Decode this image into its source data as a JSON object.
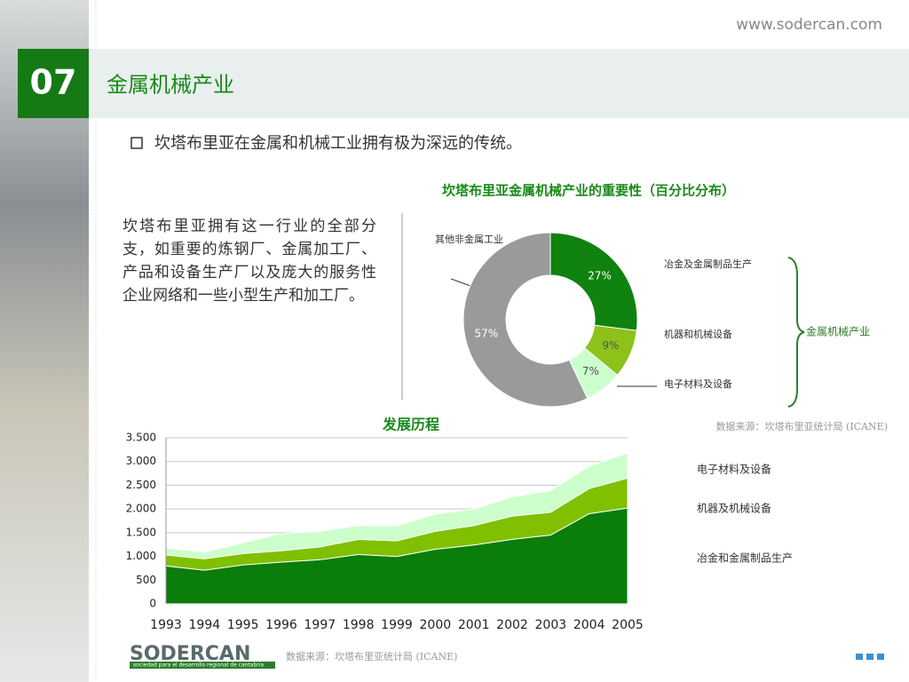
{
  "header": {
    "url": "www.sodercan.com",
    "number": "07",
    "title": "金属机械产业"
  },
  "bullet": "坎塔布里亚在金属和机械工业拥有极为深远的传统。",
  "paragraph": "坎塔布里亚拥有这一行业的全部分支，如重要的炼钢厂、金属加工厂、产品和设备生产厂以及庞大的服务性企业网络和一些小型生产和加工厂。",
  "footer": {
    "logo": "SODERCAN",
    "tagline": "sociedad para el desarrollo regional de cantabria"
  },
  "chart_data": [
    {
      "type": "pie",
      "title": "坎塔布里亚金属机械产业的重要性（百分比分布）",
      "categories": [
        "冶金及金属制品生产",
        "机器和机械设备",
        "电子材料及设备",
        "其他非金属工业"
      ],
      "values": [
        27,
        9,
        7,
        57
      ],
      "value_labels": [
        "27%",
        "9%",
        "7%",
        "57%"
      ],
      "colors": [
        "#0f820f",
        "#8cc21a",
        "#ccffcc",
        "#9a9a9a"
      ],
      "annotation": "金属机械产业",
      "source": "数据来源：坎塔布里亚统计局 (ICANE)"
    },
    {
      "type": "area",
      "title": "发展历程",
      "stacked": true,
      "grid": true,
      "categories": [
        "1993",
        "1994",
        "1995",
        "1996",
        "1997",
        "1998",
        "1999",
        "2000",
        "2001",
        "2002",
        "2003",
        "2004",
        "2005"
      ],
      "series": [
        {
          "name": "冶金和金属制品生产",
          "color": "#0a7d0a",
          "values": [
            800,
            710,
            820,
            880,
            930,
            1040,
            1000,
            1150,
            1240,
            1360,
            1450,
            1900,
            2020
          ]
        },
        {
          "name": "机器及机械设备",
          "color": "#80c000",
          "values": [
            230,
            240,
            240,
            240,
            270,
            320,
            330,
            380,
            410,
            490,
            480,
            530,
            630
          ]
        },
        {
          "name": "电子材料及设备",
          "color": "#ccffcc",
          "values": [
            150,
            140,
            230,
            360,
            330,
            290,
            320,
            360,
            350,
            400,
            460,
            470,
            530
          ]
        }
      ],
      "ylim": [
        0,
        3500
      ],
      "yticks": [
        0,
        500,
        {
          "value": 1000,
          "label": "1.000"
        },
        {
          "value": 1500,
          "label": "1.500"
        },
        {
          "value": 2000,
          "label": "2.000"
        },
        {
          "value": 2500,
          "label": "2.500"
        },
        {
          "value": 3000,
          "label": "3.000"
        },
        {
          "value": 3500,
          "label": "3.500"
        }
      ],
      "source": "数据来源：坎塔布里亚统计局 (ICANE)"
    }
  ]
}
